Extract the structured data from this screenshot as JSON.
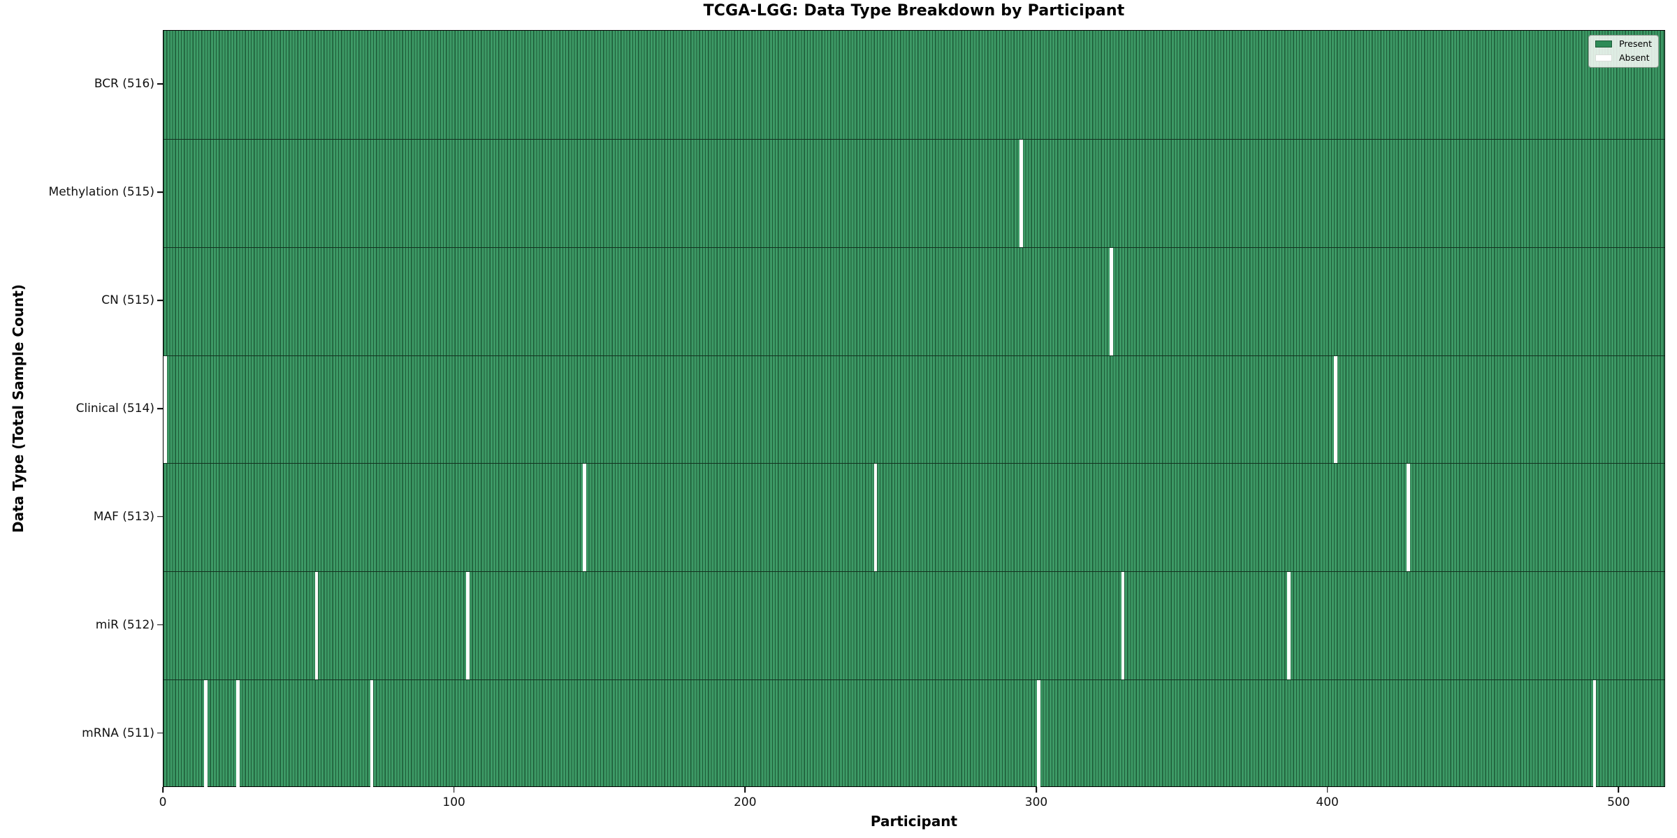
{
  "title": "TCGA-LGG: Data Type Breakdown by Participant",
  "legend": {
    "items": [
      {
        "label": "Present",
        "color": "#2e8b57",
        "edge": "#1d5a37"
      },
      {
        "label": "Absent",
        "color": "#ffffff",
        "edge": "#d9ded9"
      }
    ]
  },
  "colors": {
    "present_face": "#3d9a66",
    "present_edge": "#1d5a37",
    "absent": "#ffffff",
    "row_divider": "#12311f",
    "figure_background": "#ffffff"
  },
  "chart_data": {
    "type": "heatmap",
    "title": "TCGA-LGG: Data Type Breakdown by Participant",
    "xlabel": "Participant",
    "ylabel": "Data Type (Total Sample Count)",
    "n_participants": 516,
    "x_ticks": [
      0,
      100,
      200,
      300,
      400,
      500
    ],
    "x_range": [
      0,
      516
    ],
    "grid": false,
    "legend_position": "upper right",
    "legend_entries": [
      "Present",
      "Absent"
    ],
    "cell_values": "binary presence: green = Present, white = Absent",
    "rows": [
      {
        "label": "BCR (516)",
        "data_type": "BCR",
        "present_count": 516,
        "absent_participants": []
      },
      {
        "label": "Methylation (515)",
        "data_type": "Methylation",
        "present_count": 515,
        "absent_participants": [
          294
        ]
      },
      {
        "label": "CN (515)",
        "data_type": "CN",
        "present_count": 515,
        "absent_participants": [
          325
        ]
      },
      {
        "label": "Clinical (514)",
        "data_type": "Clinical",
        "present_count": 514,
        "absent_participants": [
          0,
          402
        ]
      },
      {
        "label": "MAF (513)",
        "data_type": "MAF",
        "present_count": 513,
        "absent_participants": [
          144,
          244,
          427
        ]
      },
      {
        "label": "miR (512)",
        "data_type": "miR",
        "present_count": 512,
        "absent_participants": [
          52,
          104,
          329,
          386
        ]
      },
      {
        "label": "mRNA (511)",
        "data_type": "mRNA",
        "present_count": 511,
        "absent_participants": [
          14,
          25,
          71,
          300,
          491
        ]
      }
    ]
  }
}
